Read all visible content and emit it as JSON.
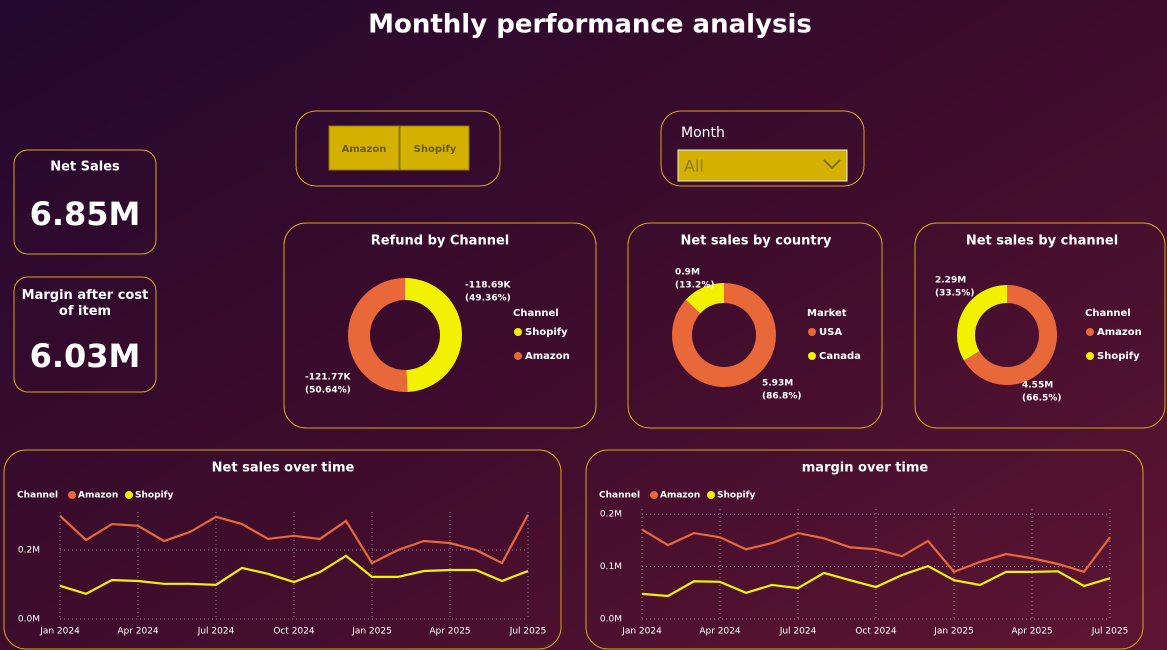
{
  "header": {
    "title": "Monthly performance analysis"
  },
  "kpis": [
    {
      "label": "Net Sales",
      "value": "6.85M"
    },
    {
      "label": "Margin after cost of item",
      "value": "6.03M"
    }
  ],
  "slicers": {
    "channel_buttons": [
      "Amazon",
      "Shopify"
    ],
    "month": {
      "label": "Month",
      "selected": "All"
    }
  },
  "chart_data": [
    {
      "type": "donut",
      "title": "Refund by Channel",
      "legend_title": "Channel",
      "categories": [
        "Shopify",
        "Amazon"
      ],
      "colors": [
        "#f2f200",
        "#e8683a"
      ],
      "values": [
        -118690,
        -121770
      ],
      "value_labels": [
        "-118.69K",
        "-121.77K"
      ],
      "percents": [
        49.36,
        50.64
      ],
      "percent_labels": [
        "(49.36%)",
        "(50.64%)"
      ]
    },
    {
      "type": "donut",
      "title": "Net sales by country",
      "legend_title": "Market",
      "categories": [
        "USA",
        "Canada"
      ],
      "colors": [
        "#e8683a",
        "#f2f200"
      ],
      "values": [
        5930000,
        900000
      ],
      "value_labels": [
        "5.93M",
        "0.9M"
      ],
      "percents": [
        86.8,
        13.2
      ],
      "percent_labels": [
        "(86.8%)",
        "(13.2%)"
      ]
    },
    {
      "type": "donut",
      "title": "Net sales by channel",
      "legend_title": "Channel",
      "categories": [
        "Amazon",
        "Shopify"
      ],
      "colors": [
        "#e8683a",
        "#f2f200"
      ],
      "values": [
        4550000,
        2290000
      ],
      "value_labels": [
        "4.55M",
        "2.29M"
      ],
      "percents": [
        66.5,
        33.5
      ],
      "percent_labels": [
        "(66.5%)",
        "(33.5%)"
      ]
    },
    {
      "type": "line",
      "title": "Net sales over time",
      "legend_title": "Channel",
      "grid": true,
      "categories": [
        "Jan 2024",
        null,
        null,
        "Apr 2024",
        null,
        null,
        "Jul 2024",
        null,
        null,
        "Oct 2024",
        null,
        null,
        "Jan 2025",
        null,
        null,
        "Apr 2025",
        null,
        null,
        "Jul 2025"
      ],
      "series": [
        {
          "name": "Amazon",
          "color": "#e8683a",
          "values": [
            299000,
            229000,
            275000,
            270000,
            226000,
            252000,
            296000,
            275000,
            232000,
            241000,
            232000,
            284000,
            162000,
            200000,
            226000,
            220000,
            200000,
            162000,
            302000
          ]
        },
        {
          "name": "Shopify",
          "color": "#f2f200",
          "values": [
            96000,
            73000,
            113000,
            110000,
            102000,
            102000,
            99000,
            148000,
            131000,
            107000,
            136000,
            183000,
            122000,
            122000,
            139000,
            142000,
            142000,
            110000,
            139000
          ]
        }
      ],
      "ylim": [
        0,
        310000
      ],
      "yticks": [
        {
          "value": 0,
          "label": "0.0M"
        },
        {
          "value": 200000,
          "label": "0.2M"
        }
      ]
    },
    {
      "type": "line",
      "title": "margin over time",
      "legend_title": "Channel",
      "grid": true,
      "categories": [
        "Jan 2024",
        null,
        null,
        "Apr 2024",
        null,
        null,
        "Jul 2024",
        null,
        null,
        "Oct 2024",
        null,
        null,
        "Jan 2025",
        null,
        null,
        "Apr 2025",
        null,
        null,
        "Jul 2025"
      ],
      "series": [
        {
          "name": "Amazon",
          "color": "#e8683a",
          "values": [
            171000,
            141000,
            164000,
            156000,
            133000,
            145000,
            164000,
            154000,
            137000,
            133000,
            120000,
            149000,
            90000,
            109000,
            124000,
            116000,
            105000,
            90000,
            156000
          ]
        },
        {
          "name": "Shopify",
          "color": "#f2f200",
          "values": [
            48000,
            44000,
            72000,
            71000,
            50000,
            65000,
            59000,
            88000,
            74000,
            61000,
            84000,
            101000,
            74000,
            65000,
            90000,
            90000,
            91000,
            63000,
            78000
          ]
        }
      ],
      "ylim": [
        0,
        210000
      ],
      "yticks": [
        {
          "value": 0,
          "label": "0.0M"
        },
        {
          "value": 100000,
          "label": "0.1M"
        },
        {
          "value": 200000,
          "label": "0.2M"
        }
      ]
    }
  ]
}
